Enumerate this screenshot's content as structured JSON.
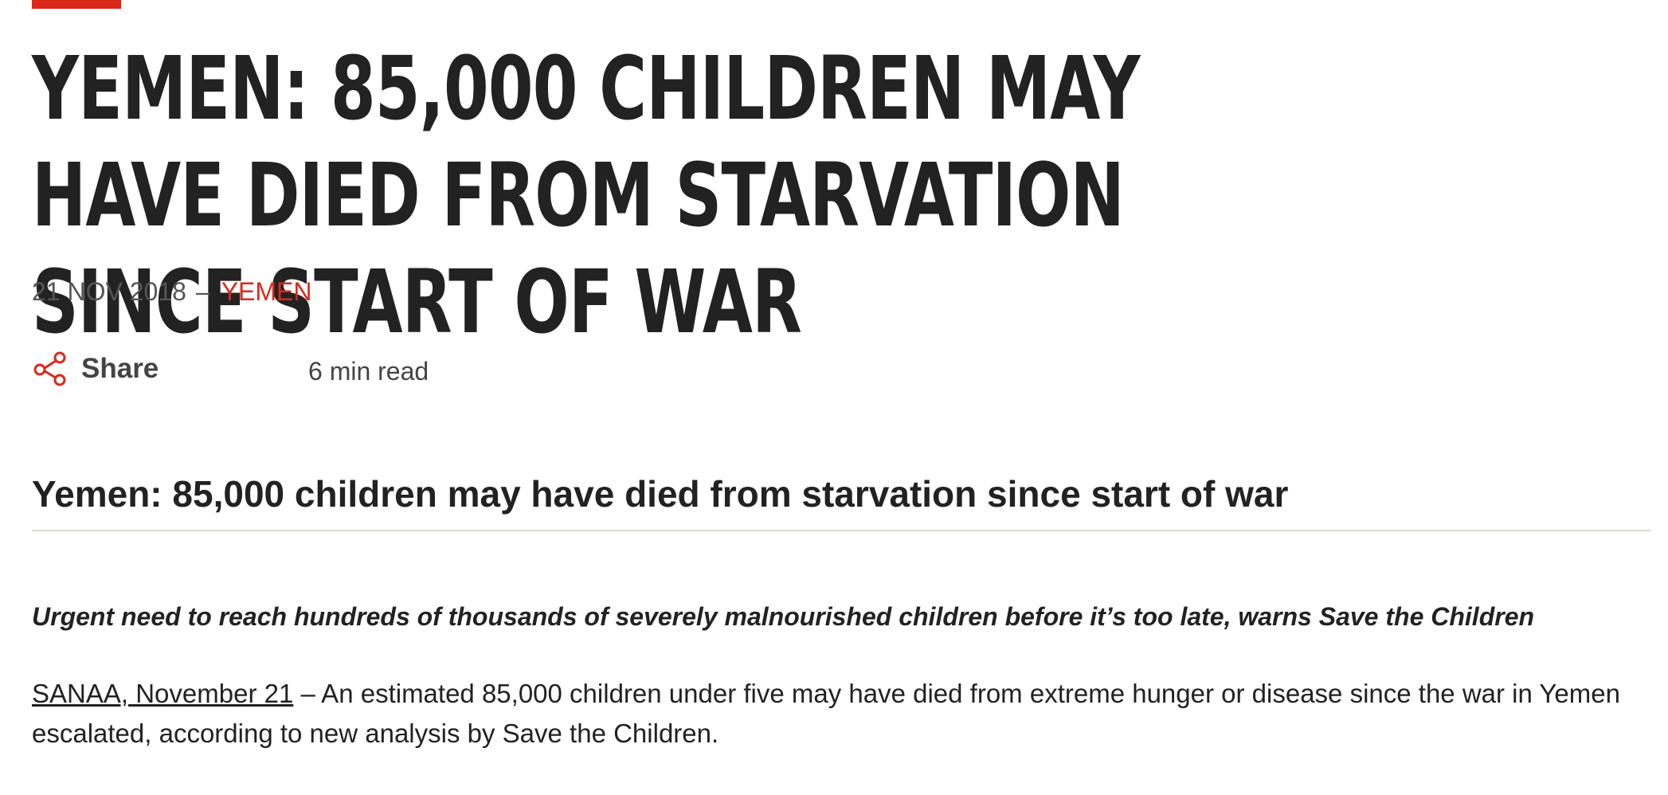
{
  "article": {
    "headline": "YEMEN: 85,000 CHILDREN MAY HAVE DIED FROM STARVATION SINCE START OF WAR",
    "date": "21 NOV 2018",
    "separator": "–",
    "category": "YEMEN",
    "share_label": "Share",
    "read_time": "6 min read",
    "subheading": "Yemen: 85,000 children may have died from starvation since start of war",
    "standfirst": "Urgent need to reach hundreds of thousands of severely malnourished children before it’s too late, warns Save the Children",
    "dateline_link": "SANAA, November 21",
    "body_text": " – An estimated 85,000 children under five may have died from extreme hunger or disease since the war in Yemen escalated, according to new analysis by Save the Children."
  },
  "colors": {
    "accent": "#da291c",
    "text": "#222222",
    "muted": "#555555",
    "divider": "#d8d8cc"
  },
  "icons": {
    "share": "share-icon"
  }
}
